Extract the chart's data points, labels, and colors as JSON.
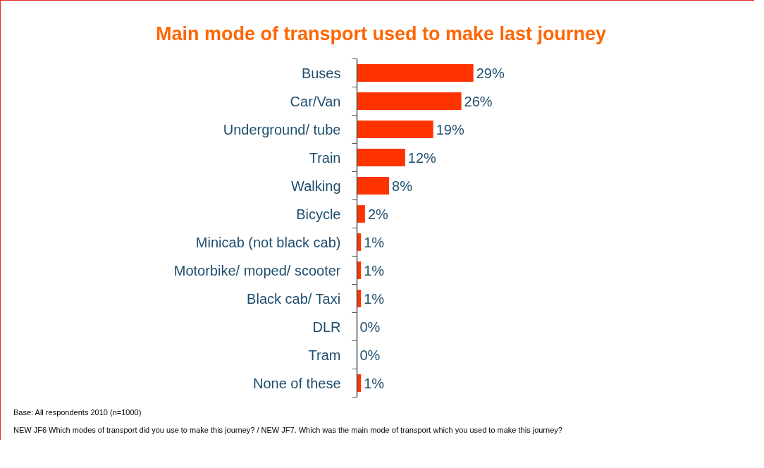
{
  "chart_data": {
    "type": "bar",
    "orientation": "horizontal",
    "title": "Main mode of transport used to make last journey",
    "categories": [
      "Buses",
      "Car/Van",
      "Underground/ tube",
      "Train",
      "Walking",
      "Bicycle",
      "Minicab (not black cab)",
      "Motorbike/ moped/ scooter",
      "Black cab/ Taxi",
      "DLR",
      "Tram",
      "None of these"
    ],
    "values": [
      29,
      26,
      19,
      12,
      8,
      2,
      1,
      1,
      1,
      0,
      0,
      1
    ],
    "value_labels": [
      "29%",
      "26%",
      "19%",
      "12%",
      "8%",
      "2%",
      "1%",
      "1%",
      "1%",
      "0%",
      "0%",
      "1%"
    ],
    "color": "#ff3300",
    "grid": false,
    "annotations": [
      "Base: All respondents 2010 (n=1000)",
      "NEW JF6 Which modes of transport did you use to make this journey? / NEW JF7. Which was the main mode of transport which you used to make this journey?"
    ]
  }
}
